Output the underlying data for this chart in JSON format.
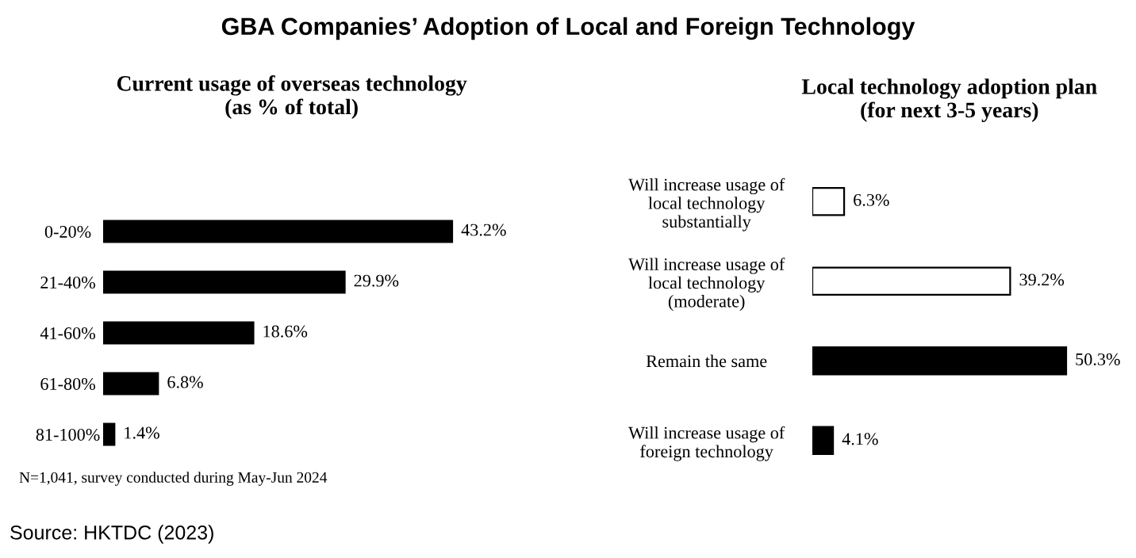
{
  "chart_data": [
    {
      "type": "bar",
      "orientation": "horizontal",
      "title": "Current usage of overseas technology\n(as % of total)",
      "categories": [
        "0-20%",
        "21-40%",
        "41-60%",
        "61-80%",
        "81-100%"
      ],
      "values": [
        43.2,
        29.9,
        18.6,
        6.8,
        1.4
      ],
      "value_labels": [
        "43.2%",
        "29.9%",
        "18.6%",
        "6.8%",
        "1.4%"
      ],
      "colors": [
        "#000000",
        "#000000",
        "#000000",
        "#000000",
        "#000000"
      ],
      "annotations": [
        "GBA Companies’ Adoption of Local and Foreign Technology",
        "N=1,041, survey conducted during May-Jun 2024",
        "Source: HKTDC (2023)"
      ]
    },
    {
      "type": "bar",
      "orientation": "horizontal",
      "title": "Local technology adoption plan\n(for next 3-5 years)",
      "categories": [
        "Will increase usage of\nlocal technology\nsubstantially",
        "Will increase usage of\nlocal technology\n(moderate)",
        "Remain the same",
        "Will increase usage of\nforeign technology"
      ],
      "values": [
        6.3,
        39.2,
        50.3,
        4.1
      ],
      "value_labels": [
        "6.3%",
        "39.2%",
        "50.3%",
        "4.1%"
      ],
      "colors": [
        "#ffffff",
        "#ffffff",
        "#000000",
        "#000000"
      ]
    }
  ]
}
